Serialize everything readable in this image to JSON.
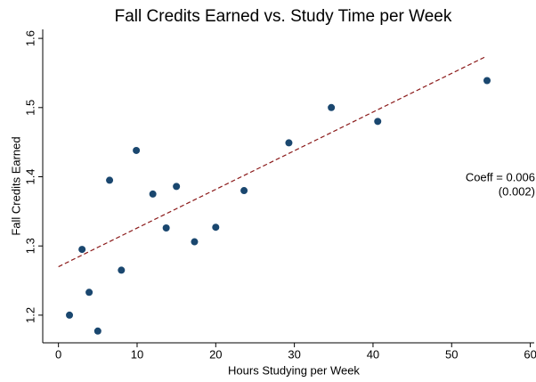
{
  "chart_data": {
    "type": "scatter",
    "title": "Fall Credits Earned vs. Study Time per Week",
    "x_label": "Hours Studying per Week",
    "y_label": "Fall Credits Earned",
    "series": [
      {
        "color": "#1a476f",
        "x": [
          1.4,
          3.0,
          3.9,
          5.0,
          6.5,
          8.0,
          9.9,
          12.0,
          13.7,
          15.0,
          17.3,
          20.0,
          23.6,
          29.3,
          34.7,
          40.6,
          54.5
        ],
        "values": [
          1.2,
          1.295,
          1.233,
          1.177,
          1.395,
          1.265,
          1.438,
          1.375,
          1.326,
          1.386,
          1.306,
          1.327,
          1.38,
          1.449,
          1.5,
          1.48,
          1.539
        ]
      }
    ],
    "fit_line": {
      "color": "#8b1a1a",
      "x": [
        0,
        54.4
      ],
      "values": [
        1.27,
        1.574
      ]
    },
    "annotations": [
      "Coeff = 0.006",
      "(0.002)"
    ],
    "xlim": [
      -2,
      60.5
    ],
    "ylim": [
      1.16,
      1.613
    ],
    "xticks": [
      0,
      10,
      20,
      30,
      40,
      50,
      60
    ],
    "yticks": [
      1.2,
      1.3,
      1.4,
      1.5,
      1.6
    ]
  }
}
